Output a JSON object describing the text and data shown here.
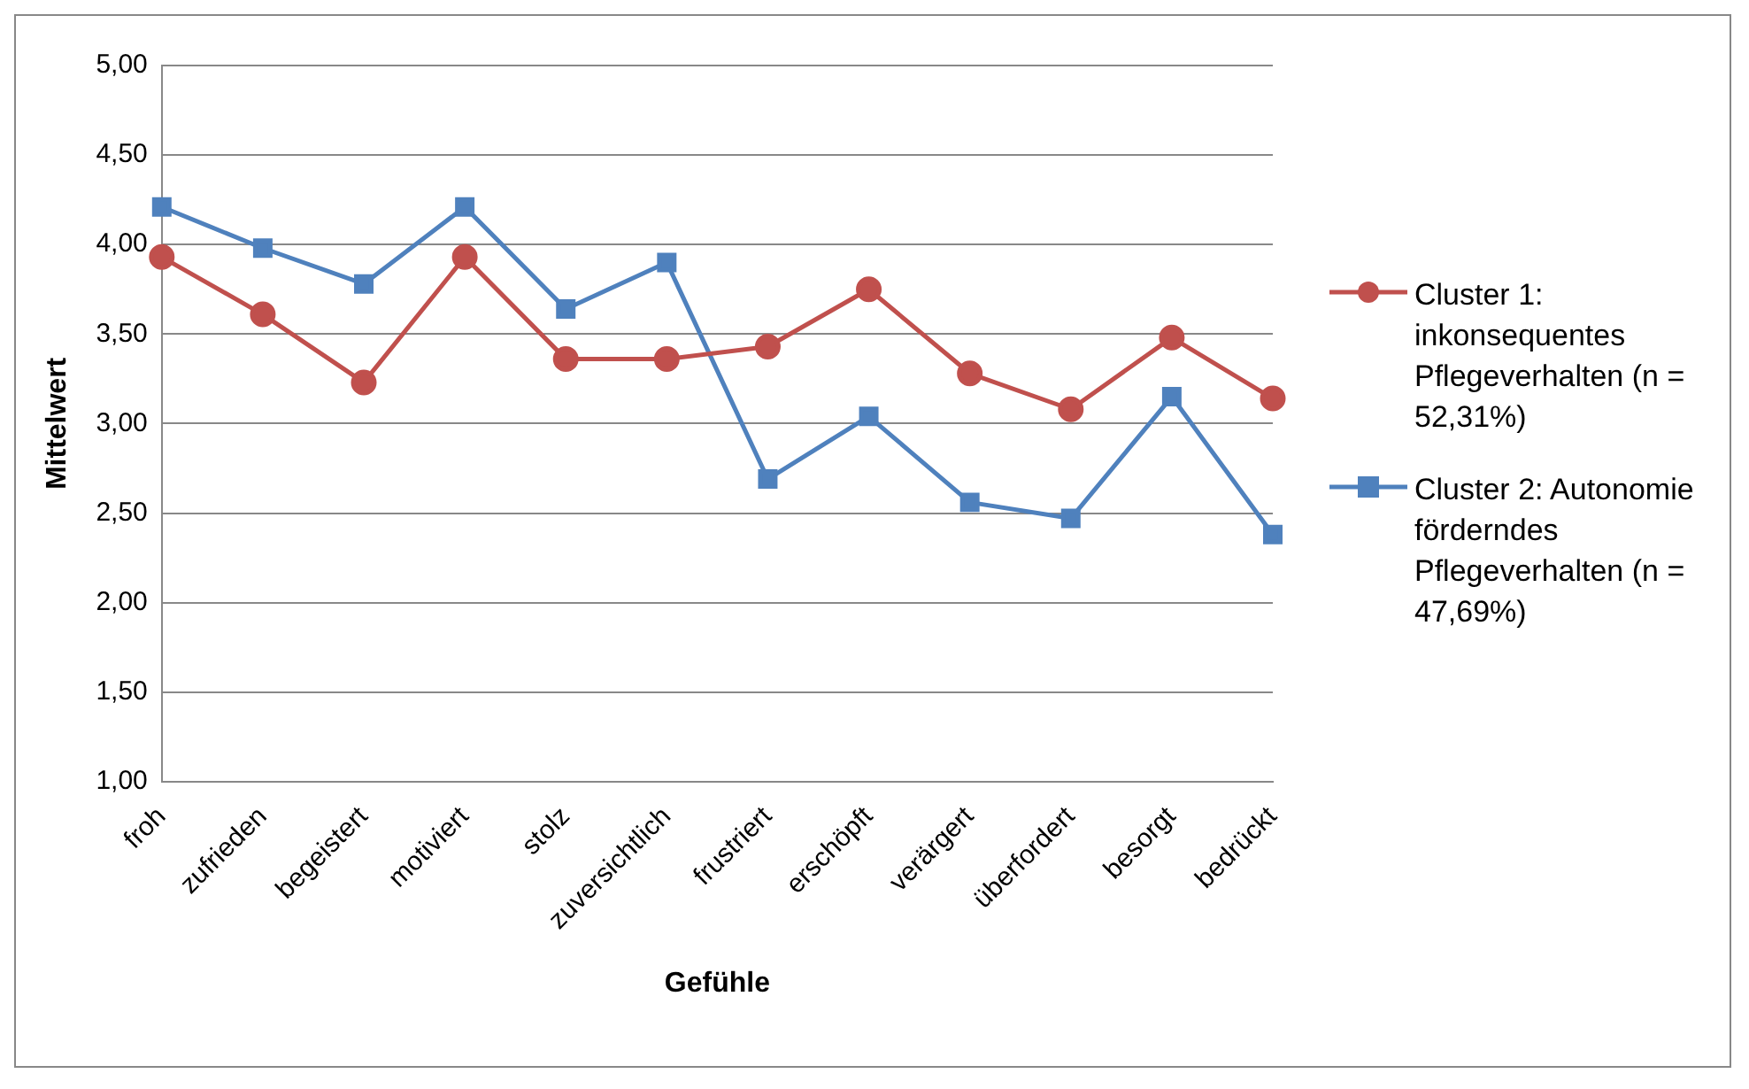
{
  "chart_data": {
    "type": "line",
    "xlabel": "Gefühle",
    "ylabel": "Mittelwert",
    "categories": [
      "froh",
      "zufrieden",
      "begeistert",
      "motiviert",
      "stolz",
      "zuversichtlich",
      "frustriert",
      "erschöpft",
      "verärgert",
      "überfordert",
      "besorgt",
      "bedrückt"
    ],
    "series": [
      {
        "name": "Cluster 1: inkonsequentes Pflegeverhalten (n = 52,31%)",
        "color": "#c0504d",
        "marker": "circle",
        "values": [
          3.93,
          3.61,
          3.23,
          3.93,
          3.36,
          3.36,
          3.43,
          3.75,
          3.28,
          3.08,
          3.48,
          3.14
        ]
      },
      {
        "name": "Cluster 2: Autonomie förderndes Pflegeverhalten (n = 47,69%)",
        "color": "#4f81bd",
        "marker": "square",
        "values": [
          4.21,
          3.98,
          3.78,
          4.21,
          3.64,
          3.9,
          2.69,
          3.04,
          2.56,
          2.47,
          3.15,
          2.38
        ]
      }
    ],
    "ylim": [
      1,
      5
    ],
    "yticks": [
      {
        "value": 1,
        "label": "1,00"
      },
      {
        "value": 1.5,
        "label": "1,50"
      },
      {
        "value": 2,
        "label": "2,00"
      },
      {
        "value": 2.5,
        "label": "2,50"
      },
      {
        "value": 3,
        "label": "3,00"
      },
      {
        "value": 3.5,
        "label": "3,50"
      },
      {
        "value": 4,
        "label": "4,00"
      },
      {
        "value": 4.5,
        "label": "4,50"
      },
      {
        "value": 5,
        "label": "5,00"
      }
    ],
    "grid": "y",
    "legend": "right",
    "line_style": "solid"
  }
}
